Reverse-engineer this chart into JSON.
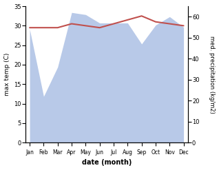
{
  "months": [
    "Jan",
    "Feb",
    "Mar",
    "Apr",
    "May",
    "Jun",
    "Jul",
    "Aug",
    "Sep",
    "Oct",
    "Nov",
    "Dec"
  ],
  "month_indices": [
    0,
    1,
    2,
    3,
    4,
    5,
    6,
    7,
    8,
    9,
    10,
    11
  ],
  "temperature": [
    29.5,
    29.5,
    29.5,
    30.5,
    30.0,
    29.5,
    30.5,
    31.5,
    32.5,
    31.0,
    30.5,
    30.0
  ],
  "precipitation": [
    54,
    22,
    36,
    62,
    61,
    57,
    57,
    57,
    47,
    56,
    60,
    55
  ],
  "temp_color": "#c0504d",
  "precip_color": "#b8c9e8",
  "title": "",
  "xlabel": "date (month)",
  "ylabel_left": "max temp (C)",
  "ylabel_right": "med. precipitation (kg/m2)",
  "ylim_left": [
    0,
    35
  ],
  "ylim_right": [
    0,
    65
  ],
  "yticks_left": [
    0,
    5,
    10,
    15,
    20,
    25,
    30,
    35
  ],
  "yticks_right": [
    0,
    10,
    20,
    30,
    40,
    50,
    60
  ],
  "background_color": "#ffffff",
  "temp_linewidth": 1.5,
  "figsize": [
    3.18,
    2.47
  ],
  "dpi": 100
}
